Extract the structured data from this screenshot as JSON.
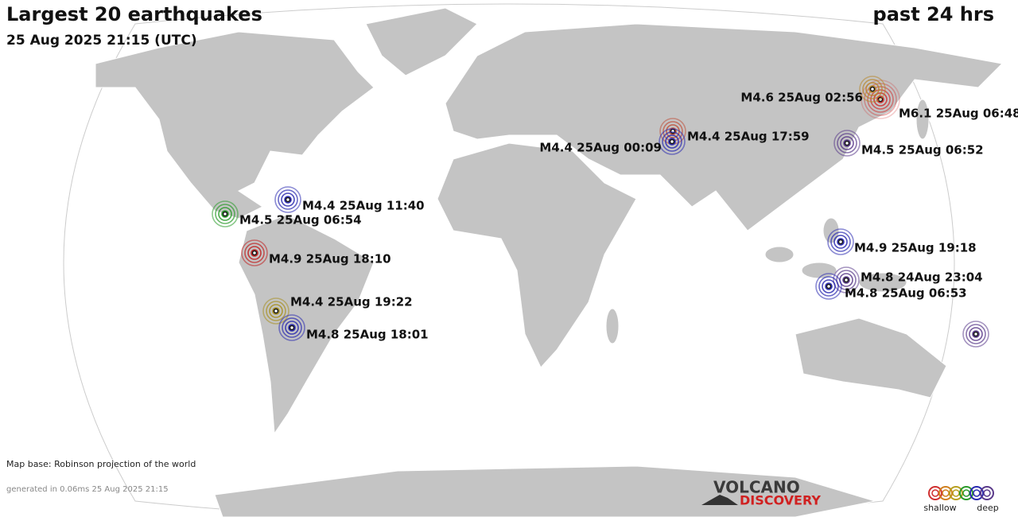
{
  "header": {
    "title": "Largest 20 earthquakes",
    "subtitle": "25 Aug 2025 21:15 (UTC)",
    "period": "past 24 hrs"
  },
  "quakes": [
    {
      "label": "M6.1 25Aug 06:48",
      "color": "#d03030"
    },
    {
      "label": "M4.6 25Aug 02:56",
      "color": "#b8862a"
    },
    {
      "label": "M4.4 25Aug 17:59",
      "color": "#c0503a"
    },
    {
      "label": "M4.4 25Aug 00:09",
      "color": "#2a2ab0"
    },
    {
      "label": "M4.5 25Aug 06:52",
      "color": "#5a3a8a"
    },
    {
      "label": "M4.4 25Aug 11:40",
      "color": "#2a2ab0"
    },
    {
      "label": "M4.5 25Aug 06:54",
      "color": "#2a9a2a"
    },
    {
      "label": "M4.9 25Aug 18:10",
      "color": "#c02020"
    },
    {
      "label": "M4.9 25Aug 19:18",
      "color": "#2a2ab0"
    },
    {
      "label": "M4.8 24Aug 23:04",
      "color": "#5a3a8a"
    },
    {
      "label": "M4.8 25Aug 06:53",
      "color": "#2a2ab0"
    },
    {
      "label": "M4.4 25Aug 19:22",
      "color": "#a89020"
    },
    {
      "label": "M4.8 25Aug 18:01",
      "color": "#2a2ab0"
    }
  ],
  "footer": {
    "map_base": "Map base: Robinson projection of the world",
    "generated": "generated in 0.06ms 25 Aug 2025 21:15"
  },
  "logo": {
    "line1": "VOLCANO",
    "line2": "DISCOVERY"
  },
  "legend": {
    "shallow": "shallow",
    "deep": "deep"
  }
}
